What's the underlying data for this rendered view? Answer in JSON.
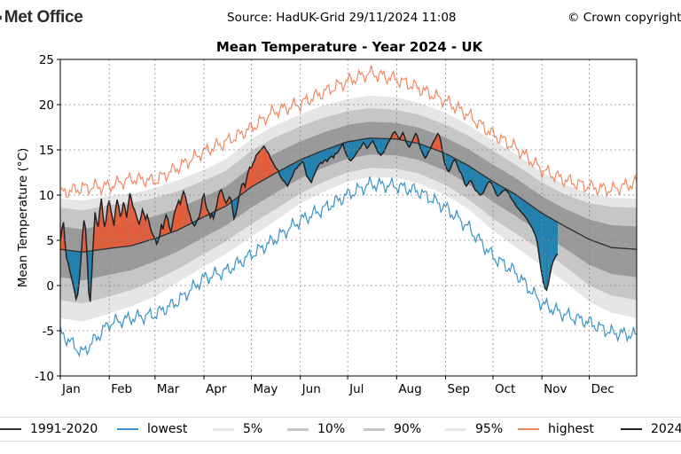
{
  "header": {
    "brand": "Met Office",
    "source": "Source: HadUK-Grid 29/11/2024 11:08",
    "copyright": "© Crown copyright"
  },
  "colors": {
    "lowest": "#3a93c3",
    "highest": "#ef8a62",
    "above_fill": "#e25c3a",
    "below_fill": "#1f7fae",
    "band_5_95": "#e6e6e6",
    "band_10_90": "#c6c6c6",
    "band_core": "#9a9a9a",
    "mean": "#333333",
    "actual": "#222222"
  },
  "chart_data": {
    "type": "line",
    "title": "Mean Temperature - Year 2024 - UK",
    "xlabel": "",
    "ylabel": "Mean Temperature (°C)",
    "ylim": [
      -10,
      25
    ],
    "yticks": [
      -10,
      -5,
      0,
      5,
      10,
      15,
      20,
      25
    ],
    "xlim": [
      1,
      366
    ],
    "month_labels": [
      "Jan",
      "Feb",
      "Mar",
      "Apr",
      "May",
      "Jun",
      "Jul",
      "Aug",
      "Sep",
      "Oct",
      "Nov",
      "Dec"
    ],
    "month_starts": [
      1,
      32,
      61,
      92,
      122,
      153,
      183,
      214,
      245,
      275,
      306,
      336
    ],
    "grid": true,
    "legend_position": "bottom",
    "legend": [
      "1991-2020",
      "lowest",
      "5%",
      "10%",
      "90%",
      "95%",
      "highest",
      "2024"
    ],
    "series": {
      "doy": [
        1,
        15,
        32,
        46,
        61,
        75,
        92,
        106,
        122,
        136,
        153,
        167,
        183,
        197,
        214,
        228,
        245,
        259,
        275,
        289,
        306,
        320,
        336,
        350,
        366
      ],
      "mean_1991_2020": [
        4.0,
        3.7,
        4.1,
        4.4,
        5.2,
        6.1,
        7.6,
        8.8,
        10.9,
        12.3,
        13.9,
        14.9,
        15.9,
        16.3,
        16.2,
        15.7,
        14.6,
        13.3,
        11.5,
        10.1,
        8.0,
        6.6,
        5.1,
        4.2,
        4.0
      ],
      "p5": [
        -3.6,
        -4.0,
        -3.1,
        -2.3,
        -1.2,
        0.3,
        2.1,
        3.5,
        5.4,
        7.0,
        9.1,
        10.3,
        11.5,
        12.0,
        11.9,
        11.3,
        10.0,
        8.5,
        6.1,
        4.3,
        2.2,
        0.5,
        -1.8,
        -3.0,
        -3.6
      ],
      "p10": [
        -1.6,
        -2.0,
        -1.2,
        -0.5,
        0.6,
        1.8,
        3.5,
        4.9,
        6.8,
        8.3,
        10.2,
        11.4,
        12.5,
        13.0,
        12.9,
        12.4,
        11.1,
        9.6,
        7.4,
        5.8,
        3.9,
        2.2,
        0.0,
        -1.1,
        -1.6
      ],
      "p90": [
        8.6,
        8.3,
        8.9,
        9.1,
        9.7,
        10.4,
        11.6,
        12.7,
        14.9,
        16.3,
        17.6,
        18.5,
        19.3,
        19.6,
        19.4,
        18.9,
        17.8,
        16.6,
        14.9,
        13.4,
        11.4,
        10.1,
        9.1,
        8.7,
        8.6
      ],
      "p95": [
        9.6,
        9.4,
        9.9,
        10.1,
        10.8,
        11.6,
        12.8,
        14.0,
        16.2,
        17.6,
        18.9,
        19.9,
        20.6,
        21.0,
        20.8,
        20.2,
        19.1,
        17.8,
        16.0,
        14.6,
        12.5,
        11.2,
        10.2,
        9.7,
        9.6
      ],
      "lowest": [
        -5.2,
        -7.5,
        -4.2,
        -3.6,
        -3.2,
        -1.8,
        0.8,
        1.6,
        3.4,
        5.0,
        7.2,
        8.4,
        10.0,
        11.2,
        11.0,
        10.4,
        8.6,
        6.5,
        3.2,
        1.5,
        -2.0,
        -3.2,
        -4.1,
        -5.2,
        -5.5
      ],
      "highest": [
        10.2,
        10.8,
        11.0,
        11.8,
        11.6,
        13.0,
        14.8,
        15.9,
        17.4,
        19.2,
        20.1,
        21.3,
        22.6,
        23.5,
        22.8,
        21.8,
        20.4,
        18.9,
        16.7,
        15.3,
        12.8,
        11.7,
        10.9,
        10.6,
        11.4
      ]
    },
    "actual_2024": {
      "start_doy": 1,
      "values": [
        5.0,
        6.2,
        7.0,
        4.8,
        3.0,
        2.5,
        1.6,
        0.9,
        0.2,
        -0.6,
        -1.5,
        -1.0,
        0.5,
        2.8,
        5.4,
        7.2,
        6.3,
        3.1,
        -0.8,
        -1.8,
        1.5,
        5.2,
        8.1,
        7.0,
        6.5,
        8.3,
        9.6,
        7.8,
        6.5,
        7.2,
        8.8,
        9.4,
        8.3,
        7.5,
        6.6,
        8.4,
        9.5,
        8.7,
        7.6,
        8.1,
        9.2,
        8.6,
        7.5,
        8.9,
        10.2,
        9.6,
        8.7,
        8.4,
        7.8,
        7.2,
        6.8,
        7.5,
        8.4,
        7.9,
        7.3,
        7.8,
        7.2,
        6.4,
        5.8,
        5.5,
        5.2,
        4.6,
        4.9,
        5.6,
        6.8,
        6.2,
        7.1,
        7.8,
        7.4,
        6.5,
        5.9,
        6.8,
        7.8,
        8.4,
        8.9,
        9.4,
        9.0,
        9.8,
        10.4,
        10.0,
        9.2,
        8.4,
        7.9,
        7.2,
        6.8,
        6.6,
        6.9,
        7.3,
        7.6,
        8.4,
        9.6,
        10.2,
        9.0,
        8.4,
        8.1,
        7.5,
        7.9,
        7.4,
        8.1,
        8.8,
        9.8,
        10.4,
        10.6,
        10.1,
        9.5,
        9.1,
        9.4,
        9.8,
        9.6,
        8.6,
        7.4,
        7.8,
        8.6,
        9.6,
        10.4,
        11.2,
        11.3,
        10.9,
        11.8,
        12.6,
        13.1,
        13.0,
        13.5,
        13.8,
        14.4,
        14.6,
        14.8,
        15.0,
        15.2,
        15.4,
        15.1,
        14.8,
        14.6,
        14.1,
        13.8,
        13.5,
        13.1,
        12.9,
        12.7,
        12.2,
        11.9,
        11.6,
        11.5,
        11.2,
        11.0,
        11.4,
        11.8,
        12.1,
        12.6,
        12.9,
        13.0,
        13.3,
        13.4,
        13.7,
        13.6,
        12.9,
        12.1,
        11.9,
        11.6,
        11.4,
        11.9,
        12.3,
        12.7,
        13.1,
        13.4,
        13.6,
        13.5,
        13.8,
        13.9,
        13.7,
        14.0,
        14.2,
        14.3,
        14.1,
        14.6,
        14.6,
        14.8,
        15.1,
        15.4,
        15.7,
        15.0,
        14.6,
        14.2,
        13.9,
        13.8,
        14.0,
        14.2,
        14.5,
        14.8,
        15.0,
        15.2,
        15.5,
        15.8,
        15.6,
        15.2,
        15.3,
        15.6,
        15.8,
        16.0,
        15.6,
        15.2,
        14.8,
        14.6,
        14.4,
        14.6,
        14.8,
        15.2,
        15.6,
        15.9,
        16.2,
        16.6,
        16.9,
        17.0,
        16.7,
        16.4,
        16.2,
        16.6,
        16.9,
        16.5,
        15.9,
        15.5,
        15.3,
        15.6,
        16.0,
        16.4,
        16.8,
        16.6,
        15.9,
        15.2,
        14.8,
        14.4,
        14.1,
        14.3,
        14.7,
        15.0,
        15.4,
        15.8,
        16.1,
        16.4,
        16.8,
        16.6,
        15.9,
        14.8,
        13.8,
        13.2,
        12.8,
        12.6,
        12.9,
        13.4,
        13.8,
        13.9,
        13.5,
        13.0,
        12.6,
        12.4,
        11.9,
        11.3,
        11.0,
        11.2,
        11.5,
        11.6,
        11.3,
        10.8,
        10.5,
        10.4,
        10.2,
        10.0,
        10.1,
        10.3,
        10.7,
        11.1,
        11.4,
        11.5,
        11.3,
        11.0,
        10.6,
        10.1,
        9.9,
        10.0,
        10.2,
        10.4,
        10.5,
        10.6,
        10.4,
        10.2,
        9.8,
        9.5,
        9.3,
        9.0,
        8.7,
        8.5,
        8.3,
        8.1,
        7.9,
        7.7,
        7.5,
        7.2,
        6.9,
        6.6,
        6.3,
        5.9,
        5.5,
        4.8,
        3.6,
        2.3,
        1.2,
        0.3,
        -0.3,
        -0.5,
        0.2,
        1.1,
        2.0,
        2.6,
        3.0,
        3.3,
        3.5
      ]
    }
  }
}
